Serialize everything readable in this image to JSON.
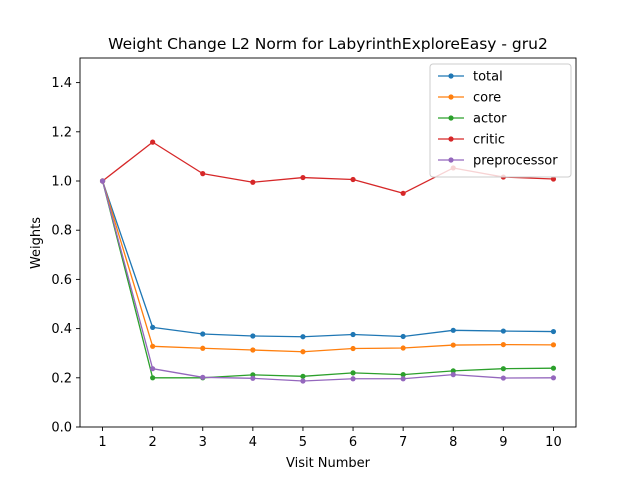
{
  "chart_data": {
    "type": "line",
    "title": "Weight Change L2 Norm for LabyrinthExploreEasy - gru2",
    "xlabel": "Visit Number",
    "ylabel": "Weights",
    "x": [
      1,
      2,
      3,
      4,
      5,
      6,
      7,
      8,
      9,
      10
    ],
    "xlim": [
      0.55,
      10.45
    ],
    "ylim": [
      0.0,
      1.5
    ],
    "yticks": [
      "0.0",
      "0.2",
      "0.4",
      "0.6",
      "0.8",
      "1.0",
      "1.2",
      "1.4"
    ],
    "xticks": [
      "1",
      "2",
      "3",
      "4",
      "5",
      "6",
      "7",
      "8",
      "9",
      "10"
    ],
    "legend_position": "top-right",
    "grid": false,
    "series": [
      {
        "name": "total",
        "color": "#1f77b4",
        "values": [
          1.0,
          0.405,
          0.378,
          0.37,
          0.367,
          0.376,
          0.368,
          0.393,
          0.39,
          0.388
        ]
      },
      {
        "name": "core",
        "color": "#ff7f0e",
        "values": [
          1.0,
          0.328,
          0.32,
          0.313,
          0.306,
          0.319,
          0.321,
          0.333,
          0.335,
          0.334
        ]
      },
      {
        "name": "actor",
        "color": "#2ca02c",
        "values": [
          1.0,
          0.2,
          0.2,
          0.212,
          0.206,
          0.22,
          0.213,
          0.228,
          0.237,
          0.239
        ]
      },
      {
        "name": "critic",
        "color": "#d62728",
        "values": [
          1.0,
          1.158,
          1.03,
          0.995,
          1.014,
          1.006,
          0.95,
          1.053,
          1.016,
          1.008
        ]
      },
      {
        "name": "preprocessor",
        "color": "#9467bd",
        "values": [
          1.0,
          0.237,
          0.202,
          0.198,
          0.187,
          0.196,
          0.196,
          0.213,
          0.199,
          0.2
        ]
      }
    ]
  }
}
